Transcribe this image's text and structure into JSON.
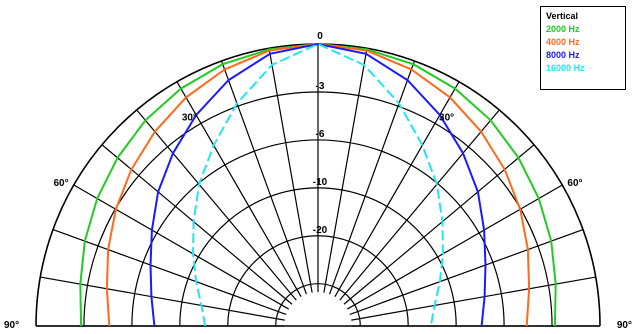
{
  "chart_data": {
    "type": "polar-line",
    "title": "",
    "radial_labels": [
      "0",
      "-3",
      "-6",
      "-10",
      "-20"
    ],
    "angle_labels": [
      {
        "angle": -90,
        "text": "90°"
      },
      {
        "angle": -60,
        "text": "60°"
      },
      {
        "angle": -30,
        "text": "30°"
      },
      {
        "angle": 0,
        "text": "0"
      },
      {
        "angle": 30,
        "text": "30°"
      },
      {
        "angle": 60,
        "text": "60°"
      },
      {
        "angle": 90,
        "text": "90°"
      }
    ],
    "legend": {
      "title": "Vertical",
      "placement": "top-right"
    },
    "series": [
      {
        "name": "2000 Hz",
        "color": "#22cc22",
        "angles": [
          -90,
          -80,
          -70,
          -60,
          -50,
          -40,
          -30,
          -20,
          -10,
          0,
          10,
          20,
          30,
          40,
          50,
          60,
          70,
          80,
          90
        ],
        "values_db": [
          -4,
          -3.6,
          -3,
          -2.4,
          -1.8,
          -1.2,
          -0.7,
          -0.3,
          -0.1,
          0,
          -0.1,
          -0.3,
          -0.7,
          -1.2,
          -1.8,
          -2.4,
          -3,
          -3.6,
          -4
        ]
      },
      {
        "name": "4000 Hz",
        "color": "#ff6a1a",
        "angles": [
          -90,
          -80,
          -70,
          -60,
          -50,
          -40,
          -30,
          -20,
          -10,
          0,
          10,
          20,
          30,
          40,
          50,
          60,
          70,
          80,
          90
        ],
        "values_db": [
          -6.5,
          -6,
          -5.2,
          -4.3,
          -3.4,
          -2.5,
          -1.6,
          -0.8,
          -0.2,
          0,
          -0.2,
          -0.8,
          -1.6,
          -2.5,
          -3.4,
          -4.3,
          -5.2,
          -6,
          -6.5
        ]
      },
      {
        "name": "8000 Hz",
        "color": "#1a1aff",
        "angles": [
          -90,
          -80,
          -70,
          -60,
          -50,
          -40,
          -30,
          -20,
          -10,
          0,
          10,
          20,
          30,
          40,
          50,
          60,
          70,
          80,
          90
        ],
        "values_db": [
          -10.5,
          -10,
          -9.2,
          -8,
          -6.5,
          -5,
          -3.4,
          -1.8,
          -0.5,
          0,
          -0.5,
          -1.8,
          -3.4,
          -5,
          -6.5,
          -8,
          -9.2,
          -10,
          -10.5
        ]
      },
      {
        "name": "16000 Hz",
        "color": "#22e5f0",
        "dashed": true,
        "angles": [
          -90,
          -80,
          -70,
          -60,
          -50,
          -40,
          -30,
          -20,
          -10,
          0,
          10,
          20,
          30,
          40,
          50,
          60,
          70,
          80,
          90
        ],
        "values_db": [
          -15,
          -14.5,
          -13.5,
          -12.2,
          -10.6,
          -8.6,
          -6.5,
          -4,
          -1.5,
          0,
          -1.5,
          -4,
          -6.5,
          -8.6,
          -10.6,
          -12.2,
          -13.5,
          -14.5,
          -15
        ]
      }
    ],
    "grid": true
  }
}
